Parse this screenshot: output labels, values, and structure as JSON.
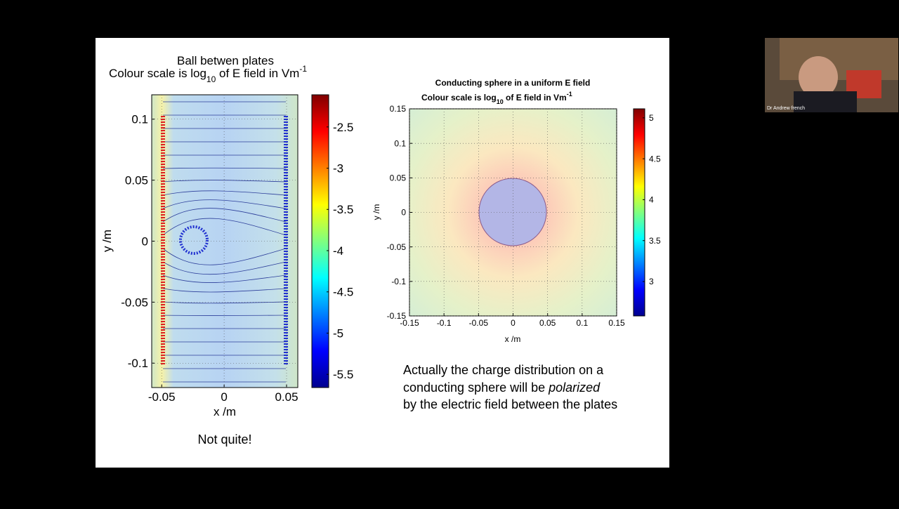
{
  "slide": {
    "left_plot": {
      "title": "Ball betwen plates",
      "subtitle_parts": [
        "Colour scale is log",
        "10",
        " of E field in Vm",
        "-1"
      ],
      "xlabel": "x /m",
      "ylabel": "y /m",
      "xlim": [
        -0.058,
        0.059
      ],
      "ylim": [
        -0.12,
        0.12
      ],
      "xticks": [
        -0.05,
        0,
        0.05
      ],
      "yticks": [
        0.1,
        0.05,
        0,
        -0.05,
        -0.1
      ],
      "clim": [
        -5.66,
        -2.11
      ],
      "cticks": [
        -2.5,
        -3,
        -3.5,
        -4,
        -4.5,
        -5,
        -5.5
      ]
    },
    "right_plot": {
      "title": "Conducting sphere in a uniform E field",
      "subtitle_parts": [
        "Colour scale is log",
        "10",
        " of E field in Vm",
        "-1"
      ],
      "xlabel": "x /m",
      "ylabel": "y /m",
      "xlim": [
        -0.15,
        0.15
      ],
      "ylim": [
        -0.15,
        0.15
      ],
      "xticks": [
        -0.15,
        -0.1,
        -0.05,
        0,
        0.05,
        0.1,
        0.15
      ],
      "yticks": [
        0.15,
        0.1,
        0.05,
        0,
        -0.05,
        -0.1,
        -0.15
      ],
      "clim": [
        2.58,
        5.11
      ],
      "cticks": [
        5,
        4.5,
        4,
        3.5,
        3
      ]
    },
    "left_caption": "Not quite!",
    "right_caption": [
      "Actually the charge distribution on a",
      "conducting sphere will be ",
      "polarized",
      "by the electric field between the plates"
    ]
  },
  "webcam": {
    "name": "Dr Andrew french"
  }
}
